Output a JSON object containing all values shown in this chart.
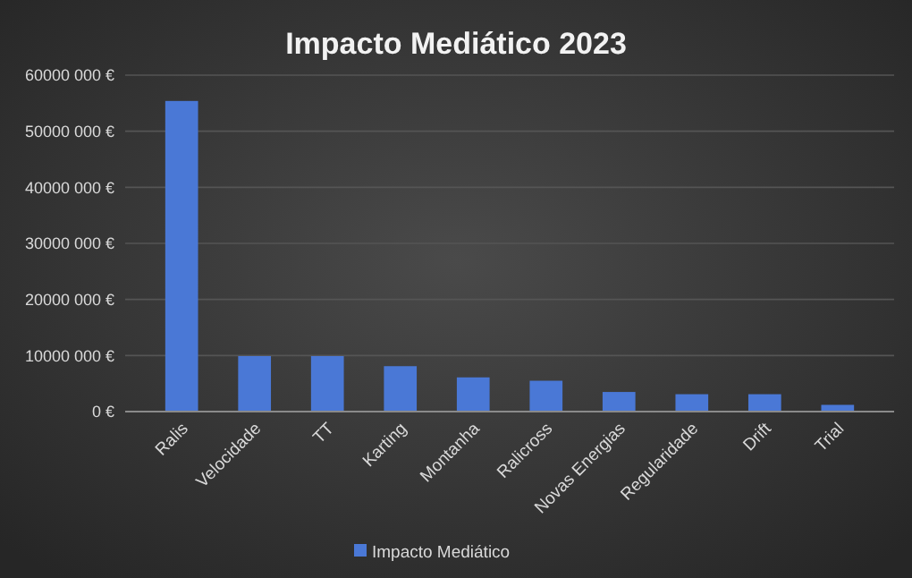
{
  "chart_data": {
    "type": "bar",
    "title": "Impacto Mediático 2023",
    "categories": [
      "Ralis",
      "Velocidade",
      "TT",
      "Karting",
      "Montanha",
      "Ralicross",
      "Novas Energias",
      "Regularidade",
      "Drift",
      "Trial"
    ],
    "series": [
      {
        "name": "Impacto Mediático",
        "color": "#4a78d6",
        "values": [
          55400000,
          9900000,
          9900000,
          8100000,
          6100000,
          5500000,
          3500000,
          3100000,
          3100000,
          1200000
        ]
      }
    ],
    "ylim": [
      0,
      60000000
    ],
    "yticks": [
      {
        "value": 0,
        "label": "0 €"
      },
      {
        "value": 10000000,
        "label": "10000 000 €"
      },
      {
        "value": 20000000,
        "label": "20000 000 €"
      },
      {
        "value": 30000000,
        "label": "30000 000 €"
      },
      {
        "value": 40000000,
        "label": "40000 000 €"
      },
      {
        "value": 50000000,
        "label": "50000 000 €"
      },
      {
        "value": 60000000,
        "label": "60000 000 €"
      }
    ],
    "grid": "y",
    "legend": "bottom"
  }
}
